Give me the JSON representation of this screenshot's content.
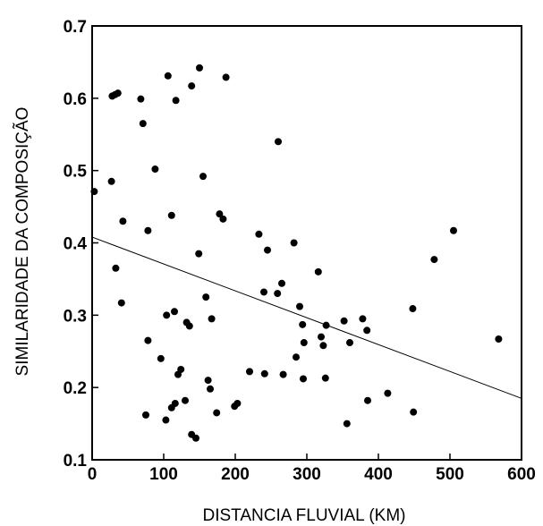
{
  "chart_data": {
    "type": "scatter",
    "xlabel": "DISTANCIA FLUVIAL (KM)",
    "ylabel": "SIMILARIDADE DA COMPOSIÇÃO",
    "xlim": [
      0,
      600
    ],
    "ylim": [
      0.1,
      0.7
    ],
    "x_ticks": [
      0,
      100,
      200,
      300,
      400,
      500,
      600
    ],
    "y_ticks": [
      0.1,
      0.2,
      0.3,
      0.4,
      0.5,
      0.6,
      0.7
    ],
    "x_tick_labels": [
      "0",
      "100",
      "200",
      "300",
      "400",
      "500",
      "600"
    ],
    "y_tick_labels": [
      "0.1",
      "0.2",
      "0.3",
      "0.4",
      "0.5",
      "0.6",
      "0.7"
    ],
    "grid": false,
    "legend": "none",
    "colors": {
      "points": "#000000",
      "line": "#000000",
      "axes": "#000000"
    },
    "trend_line": {
      "x": [
        0,
        600
      ],
      "y": [
        0.408,
        0.185
      ]
    },
    "points": [
      {
        "x": 3,
        "y": 0.471
      },
      {
        "x": 28,
        "y": 0.603
      },
      {
        "x": 32,
        "y": 0.605
      },
      {
        "x": 36,
        "y": 0.607
      },
      {
        "x": 27,
        "y": 0.485
      },
      {
        "x": 43,
        "y": 0.43
      },
      {
        "x": 33,
        "y": 0.365
      },
      {
        "x": 41,
        "y": 0.317
      },
      {
        "x": 68,
        "y": 0.599
      },
      {
        "x": 71,
        "y": 0.565
      },
      {
        "x": 88,
        "y": 0.502
      },
      {
        "x": 78,
        "y": 0.417
      },
      {
        "x": 75,
        "y": 0.162
      },
      {
        "x": 78,
        "y": 0.265
      },
      {
        "x": 96,
        "y": 0.24
      },
      {
        "x": 106,
        "y": 0.631
      },
      {
        "x": 117,
        "y": 0.597
      },
      {
        "x": 139,
        "y": 0.617
      },
      {
        "x": 150,
        "y": 0.642
      },
      {
        "x": 187,
        "y": 0.629
      },
      {
        "x": 260,
        "y": 0.54
      },
      {
        "x": 155,
        "y": 0.492
      },
      {
        "x": 111,
        "y": 0.438
      },
      {
        "x": 178,
        "y": 0.44
      },
      {
        "x": 183,
        "y": 0.433
      },
      {
        "x": 149,
        "y": 0.385
      },
      {
        "x": 104,
        "y": 0.3
      },
      {
        "x": 115,
        "y": 0.305
      },
      {
        "x": 132,
        "y": 0.29
      },
      {
        "x": 136,
        "y": 0.285
      },
      {
        "x": 159,
        "y": 0.325
      },
      {
        "x": 167,
        "y": 0.295
      },
      {
        "x": 103,
        "y": 0.155
      },
      {
        "x": 111,
        "y": 0.172
      },
      {
        "x": 116,
        "y": 0.178
      },
      {
        "x": 120,
        "y": 0.218
      },
      {
        "x": 124,
        "y": 0.225
      },
      {
        "x": 130,
        "y": 0.182
      },
      {
        "x": 139,
        "y": 0.135
      },
      {
        "x": 145,
        "y": 0.13
      },
      {
        "x": 162,
        "y": 0.21
      },
      {
        "x": 165,
        "y": 0.198
      },
      {
        "x": 174,
        "y": 0.165
      },
      {
        "x": 199,
        "y": 0.174
      },
      {
        "x": 203,
        "y": 0.178
      },
      {
        "x": 220,
        "y": 0.222
      },
      {
        "x": 241,
        "y": 0.219
      },
      {
        "x": 233,
        "y": 0.412
      },
      {
        "x": 245,
        "y": 0.39
      },
      {
        "x": 240,
        "y": 0.332
      },
      {
        "x": 259,
        "y": 0.33
      },
      {
        "x": 265,
        "y": 0.344
      },
      {
        "x": 267,
        "y": 0.218
      },
      {
        "x": 282,
        "y": 0.4
      },
      {
        "x": 285,
        "y": 0.242
      },
      {
        "x": 290,
        "y": 0.312
      },
      {
        "x": 294,
        "y": 0.287
      },
      {
        "x": 296,
        "y": 0.262
      },
      {
        "x": 295,
        "y": 0.212
      },
      {
        "x": 316,
        "y": 0.36
      },
      {
        "x": 320,
        "y": 0.27
      },
      {
        "x": 323,
        "y": 0.258
      },
      {
        "x": 327,
        "y": 0.286
      },
      {
        "x": 326,
        "y": 0.213
      },
      {
        "x": 352,
        "y": 0.292
      },
      {
        "x": 356,
        "y": 0.15
      },
      {
        "x": 360,
        "y": 0.262
      },
      {
        "x": 378,
        "y": 0.295
      },
      {
        "x": 384,
        "y": 0.279
      },
      {
        "x": 385,
        "y": 0.182
      },
      {
        "x": 413,
        "y": 0.192
      },
      {
        "x": 448,
        "y": 0.309
      },
      {
        "x": 449,
        "y": 0.166
      },
      {
        "x": 478,
        "y": 0.377
      },
      {
        "x": 505,
        "y": 0.417
      },
      {
        "x": 568,
        "y": 0.267
      }
    ]
  }
}
